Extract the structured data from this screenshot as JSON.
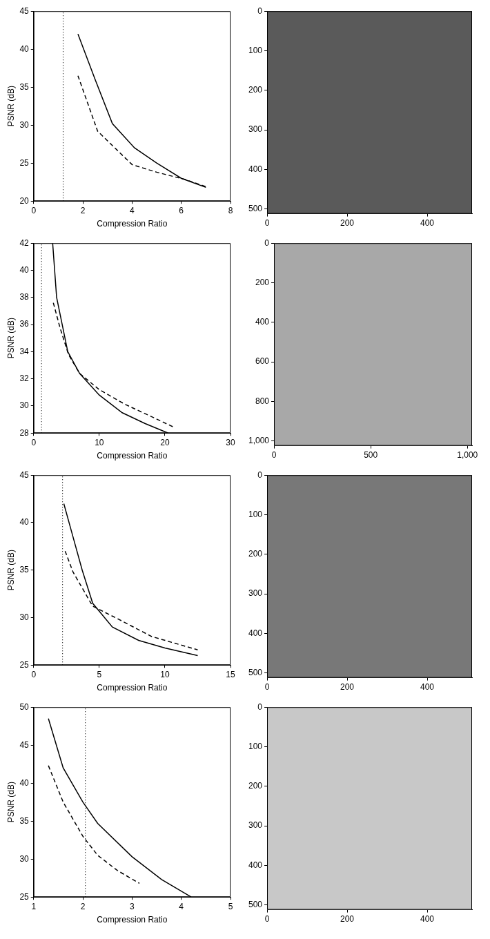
{
  "chart_data": [
    {
      "type": "line",
      "x_label": "Compression Ratio",
      "y_label": "PSNR (dB)",
      "grid": false,
      "xlim": [
        0,
        8
      ],
      "xticks": [
        0,
        2,
        4,
        6,
        8
      ],
      "ylim": [
        20,
        45
      ],
      "yticks": [
        20,
        25,
        30,
        35,
        40,
        45
      ],
      "vline_x": 1.2,
      "series": [
        {
          "line_style": "solid",
          "color": "#000000",
          "x": [
            1.8,
            2.5,
            3.2,
            4.1,
            5.0,
            6.0,
            7.0
          ],
          "values": [
            42,
            36,
            30.2,
            27,
            25,
            23,
            21.8
          ]
        },
        {
          "line_style": "dashed",
          "color": "#000000",
          "x": [
            1.8,
            2.6,
            4.0,
            5.0,
            6.2,
            7.0
          ],
          "values": [
            36.5,
            29.2,
            24.8,
            23.8,
            22.8,
            21.9
          ]
        }
      ]
    },
    {
      "type": "image",
      "color": "#5a5a5a",
      "grid": false,
      "xlim": [
        0,
        512
      ],
      "xticks": [
        0,
        200,
        400
      ],
      "ylim": [
        0,
        512
      ],
      "yticks": [
        0,
        100,
        200,
        300,
        400,
        500
      ]
    },
    {
      "type": "line",
      "x_label": "Compression Ratio",
      "y_label": "PSNR (dB)",
      "grid": false,
      "xlim": [
        0,
        30
      ],
      "xticks": [
        0,
        10,
        20,
        30
      ],
      "ylim": [
        28,
        42
      ],
      "yticks": [
        28,
        30,
        32,
        34,
        36,
        38,
        40,
        42
      ],
      "vline_x": 1.2,
      "series": [
        {
          "line_style": "solid",
          "color": "#000000",
          "x": [
            2.9,
            3.5,
            5.2,
            7.0,
            10.0,
            13.5,
            17.0,
            20.5
          ],
          "values": [
            42,
            38,
            34,
            32.4,
            30.8,
            29.5,
            28.7,
            28
          ]
        },
        {
          "line_style": "dashed",
          "color": "#000000",
          "x": [
            3.0,
            4.0,
            5.3,
            7.0,
            10.0,
            14.0,
            18.0,
            21.5
          ],
          "values": [
            37.6,
            35.8,
            33.8,
            32.4,
            31.2,
            30.1,
            29.2,
            28.4
          ]
        }
      ]
    },
    {
      "type": "image",
      "color": "#a8a8a8",
      "grid": false,
      "xlim": [
        0,
        1024
      ],
      "xticks": [
        0,
        500,
        1000
      ],
      "ylim": [
        0,
        1024
      ],
      "yticks": [
        0,
        200,
        400,
        600,
        800,
        1000
      ]
    },
    {
      "type": "line",
      "x_label": "Compression Ratio",
      "y_label": "PSNR (dB)",
      "grid": false,
      "xlim": [
        0,
        15
      ],
      "xticks": [
        0,
        5,
        10,
        15
      ],
      "ylim": [
        25,
        45
      ],
      "yticks": [
        25,
        30,
        35,
        40,
        45
      ],
      "vline_x": 2.2,
      "series": [
        {
          "line_style": "solid",
          "color": "#000000",
          "x": [
            2.3,
            3.0,
            3.7,
            4.5,
            6.0,
            8.0,
            10.0,
            12.5
          ],
          "values": [
            42,
            38.5,
            35,
            31.5,
            29,
            27.6,
            26.8,
            26
          ]
        },
        {
          "line_style": "dashed",
          "color": "#000000",
          "x": [
            2.4,
            3.0,
            4.5,
            6.5,
            9.0,
            12.5
          ],
          "values": [
            37,
            34.8,
            31.2,
            29.8,
            28,
            26.6
          ]
        }
      ]
    },
    {
      "type": "image",
      "color": "#787878",
      "grid": false,
      "xlim": [
        0,
        512
      ],
      "xticks": [
        0,
        200,
        400
      ],
      "ylim": [
        0,
        512
      ],
      "yticks": [
        0,
        100,
        200,
        300,
        400,
        500
      ]
    },
    {
      "type": "line",
      "x_label": "Compression Ratio",
      "y_label": "PSNR (dB)",
      "grid": false,
      "xlim": [
        1,
        5
      ],
      "xticks": [
        1,
        2,
        3,
        4,
        5
      ],
      "ylim": [
        25,
        50
      ],
      "yticks": [
        25,
        30,
        35,
        40,
        45,
        50
      ],
      "vline_x": 2.05,
      "series": [
        {
          "line_style": "solid",
          "color": "#000000",
          "x": [
            1.3,
            1.6,
            2.0,
            2.3,
            3.0,
            3.6,
            4.2
          ],
          "values": [
            48.5,
            42,
            37.5,
            34.7,
            30.3,
            27.3,
            25
          ]
        },
        {
          "line_style": "dashed",
          "color": "#000000",
          "x": [
            1.3,
            1.6,
            2.0,
            2.3,
            2.7,
            3.15
          ],
          "values": [
            42.3,
            37.5,
            33,
            30.5,
            28.5,
            26.8
          ]
        }
      ]
    },
    {
      "type": "image",
      "color": "#c8c8c8",
      "grid": false,
      "xlim": [
        0,
        512
      ],
      "xticks": [
        0,
        200,
        400
      ],
      "ylim": [
        0,
        512
      ],
      "yticks": [
        0,
        100,
        200,
        300,
        400,
        500
      ]
    }
  ]
}
